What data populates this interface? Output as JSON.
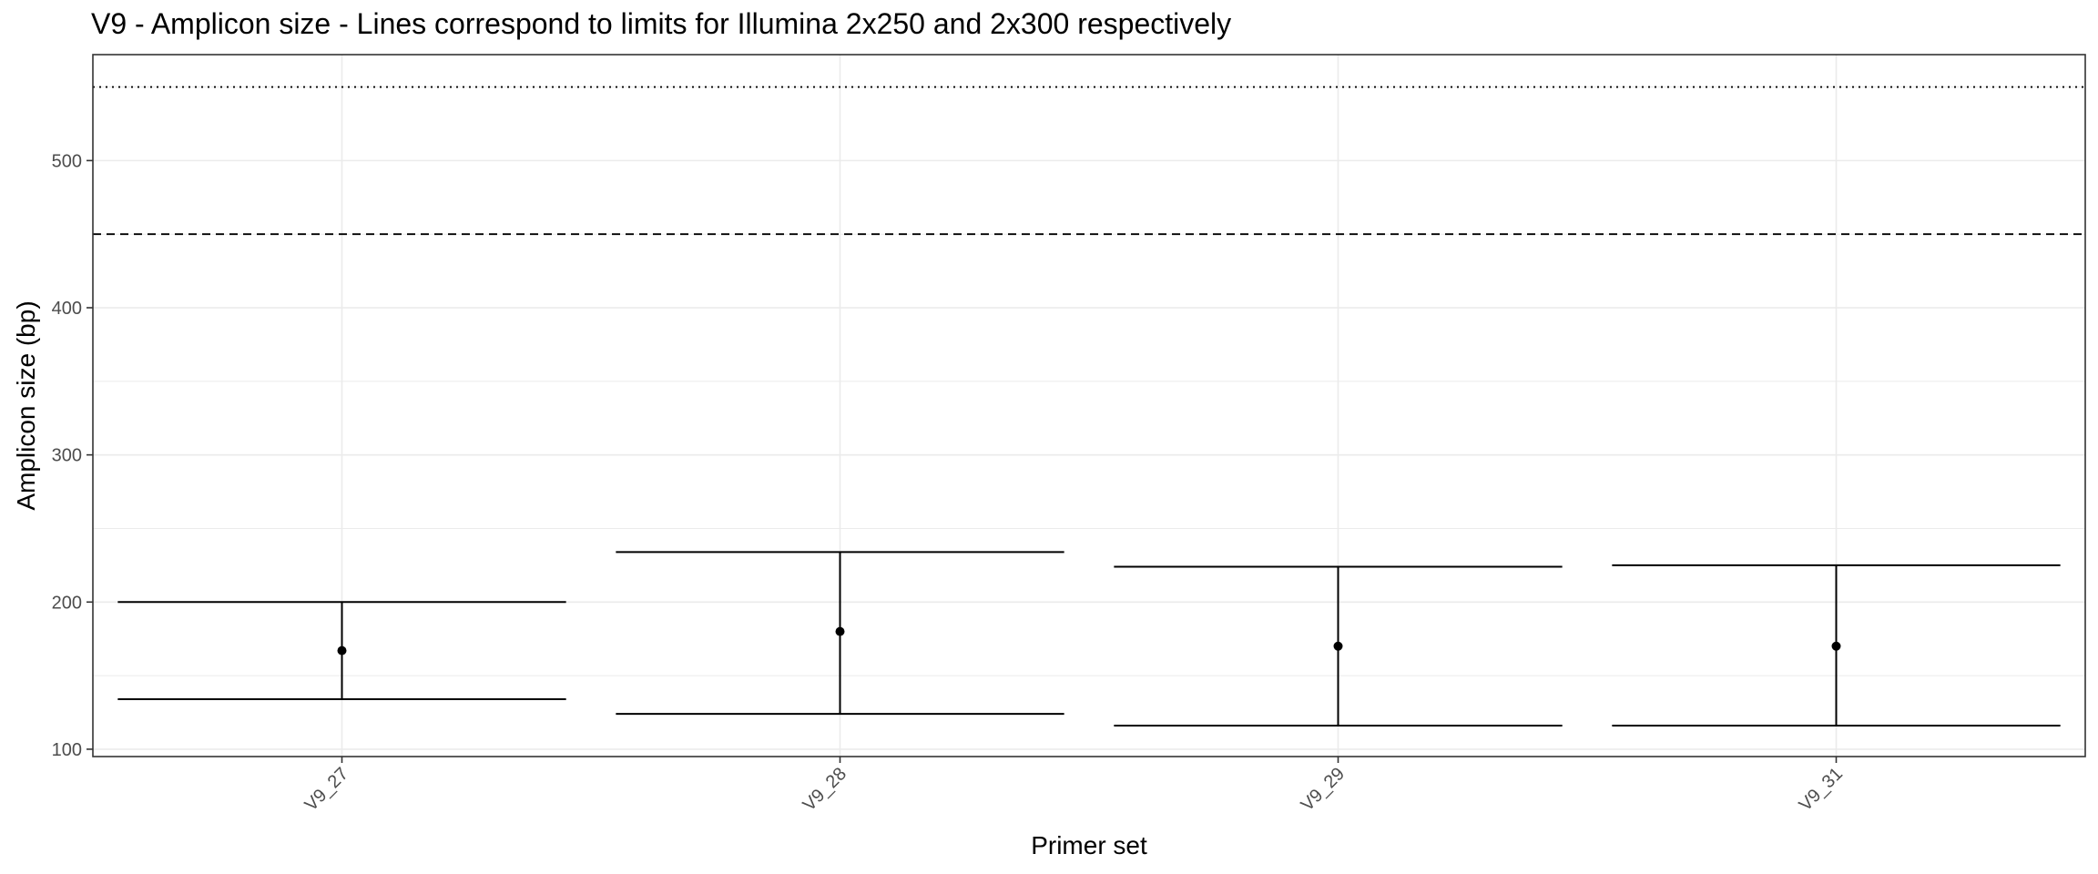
{
  "chart_data": {
    "type": "errorbar",
    "title": "V9 - Amplicon size - Lines correspond to limits for Illumina 2x250 and 2x300 respectively",
    "xlabel": "Primer set",
    "ylabel": "Amplicon size (bp)",
    "categories": [
      "V9_27",
      "V9_28",
      "V9_29",
      "V9_31"
    ],
    "points": [
      {
        "category": "V9_27",
        "mean": 167,
        "low": 134,
        "high": 200
      },
      {
        "category": "V9_28",
        "mean": 180,
        "low": 124,
        "high": 234
      },
      {
        "category": "V9_29",
        "mean": 170,
        "low": 116,
        "high": 224
      },
      {
        "category": "V9_31",
        "mean": 170,
        "low": 116,
        "high": 225
      }
    ],
    "yticks": [
      100,
      200,
      300,
      400,
      500
    ],
    "ylim": [
      95,
      572
    ],
    "reference_lines": [
      {
        "value": 450,
        "style": "dashed"
      },
      {
        "value": 550,
        "style": "dotted"
      }
    ],
    "grid": true,
    "colors": {
      "line": "#000000",
      "grid": "#ebebeb",
      "tick_text": "#4d4d4d",
      "panel_border": "#333333"
    }
  }
}
